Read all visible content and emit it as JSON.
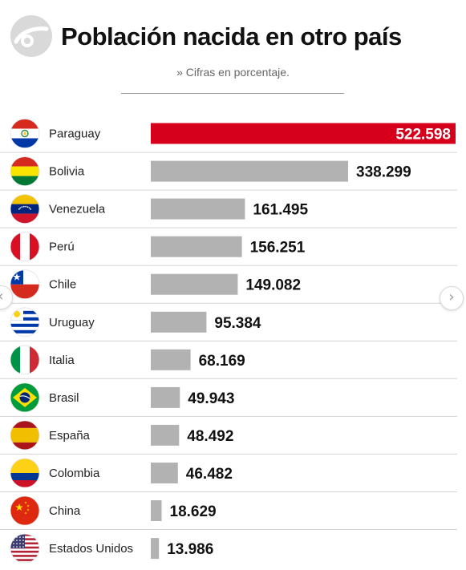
{
  "header": {
    "title": "Población nacida en otro país",
    "subtitle": "» Cifras en porcentaje."
  },
  "colors": {
    "highlight": "#d6001c",
    "bar": "#b2b2b2",
    "row_separator": "#d4d4d4",
    "label_text": "#222222",
    "value_text": "#111111",
    "highlight_value_text": "#ffffff"
  },
  "navigation": {
    "prev_icon": "chevron-left-icon",
    "next_icon": "chevron-right-icon",
    "prev_glyph": "‹",
    "next_glyph": "›"
  },
  "chart_data": {
    "type": "bar",
    "orientation": "horizontal",
    "categories": [
      "Paraguay",
      "Bolivia",
      "Venezuela",
      "Perú",
      "Chile",
      "Uruguay",
      "Italia",
      "Brasil",
      "España",
      "Colombia",
      "China",
      "Estados Unidos"
    ],
    "values": [
      522598,
      338299,
      161495,
      156251,
      149082,
      95384,
      68169,
      49943,
      48492,
      46482,
      18629,
      13986
    ],
    "value_labels": [
      "522.598",
      "338.299",
      "161.495",
      "156.251",
      "149.082",
      "95.384",
      "68.169",
      "49.943",
      "48.492",
      "46.482",
      "18.629",
      "13.986"
    ],
    "flag_icons": [
      "paraguay-flag-icon",
      "bolivia-flag-icon",
      "venezuela-flag-icon",
      "peru-flag-icon",
      "chile-flag-icon",
      "uruguay-flag-icon",
      "italy-flag-icon",
      "brazil-flag-icon",
      "spain-flag-icon",
      "colombia-flag-icon",
      "china-flag-icon",
      "usa-flag-icon"
    ],
    "highlighted_index": 0,
    "title": "Población nacida en otro país",
    "subtitle": "» Cifras en porcentaje."
  }
}
